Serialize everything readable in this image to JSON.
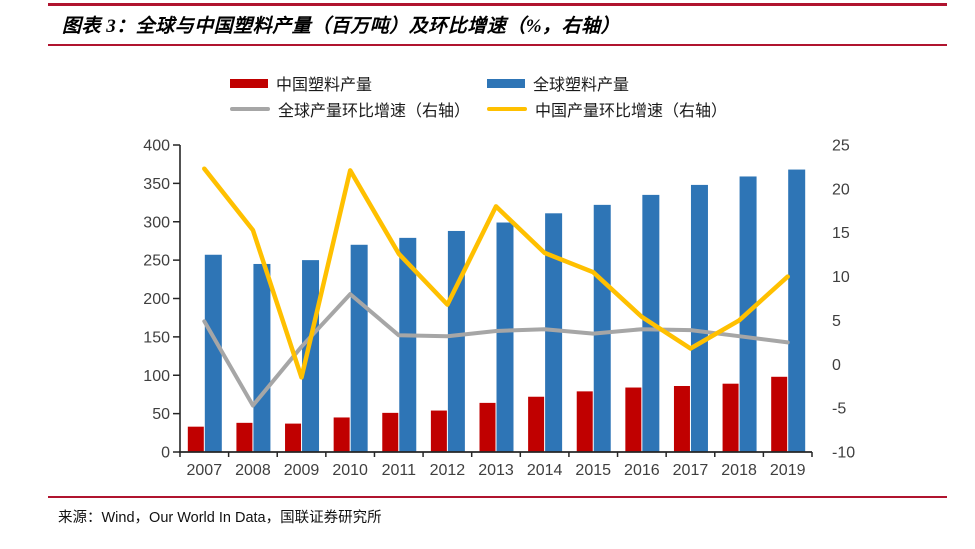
{
  "header": {
    "figure_label": "图表 3：全球与中国塑料产量（百万吨）及环比增速（%，右轴）"
  },
  "legend": {
    "items": [
      {
        "label": "中国塑料产量",
        "swatch": "bar",
        "color": "#C00000"
      },
      {
        "label": "全球塑料产量",
        "swatch": "bar",
        "color": "#2E75B6"
      },
      {
        "label": "全球产量环比增速（右轴）",
        "swatch": "line",
        "color": "#A6A6A6"
      },
      {
        "label": "中国产量环比增速（右轴）",
        "swatch": "line",
        "color": "#FFC000"
      }
    ]
  },
  "chart_data": {
    "type": "combo-bar-line",
    "title": "全球与中国塑料产量（百万吨）及环比增速（%，右轴）",
    "categories": [
      "2007",
      "2008",
      "2009",
      "2010",
      "2011",
      "2012",
      "2013",
      "2014",
      "2015",
      "2016",
      "2017",
      "2018",
      "2019"
    ],
    "series": [
      {
        "id": "china_production",
        "name": "中国塑料产量",
        "type": "bar",
        "axis": "left",
        "color": "#C00000",
        "values": [
          33,
          38,
          37,
          45,
          51,
          54,
          64,
          72,
          79,
          84,
          86,
          89,
          98
        ]
      },
      {
        "id": "global_production",
        "name": "全球塑料产量",
        "type": "bar",
        "axis": "left",
        "color": "#2E75B6",
        "values": [
          257,
          245,
          250,
          270,
          279,
          288,
          299,
          311,
          322,
          335,
          348,
          359,
          368
        ]
      },
      {
        "id": "global_growth",
        "name": "全球产量环比增速（右轴）",
        "type": "line",
        "axis": "right",
        "color": "#A6A6A6",
        "values": [
          4.9,
          -4.7,
          2.0,
          8.0,
          3.3,
          3.2,
          3.8,
          4.0,
          3.5,
          4.0,
          3.9,
          3.2,
          2.5
        ]
      },
      {
        "id": "china_growth",
        "name": "中国产量环比增速（右轴）",
        "type": "line",
        "axis": "right",
        "color": "#FFC000",
        "values": [
          22.3,
          15.3,
          -1.5,
          22.1,
          12.6,
          6.8,
          18.0,
          12.7,
          10.5,
          5.4,
          1.8,
          5.0,
          10.0
        ]
      }
    ],
    "left_axis": {
      "min": 0,
      "max": 400,
      "step": 50
    },
    "right_axis": {
      "min": -10,
      "max": 25,
      "step": 5
    },
    "grid": false,
    "legend_position": "top"
  },
  "source": {
    "text": "来源：Wind，Our World In Data，国联证券研究所"
  },
  "colors": {
    "accent_rule": "#B0142F",
    "bar_china": "#C00000",
    "bar_global": "#2E75B6",
    "line_global_growth": "#A6A6A6",
    "line_china_growth": "#FFC000",
    "axis_text": "#3F3F3F",
    "axis_line": "#262626"
  }
}
